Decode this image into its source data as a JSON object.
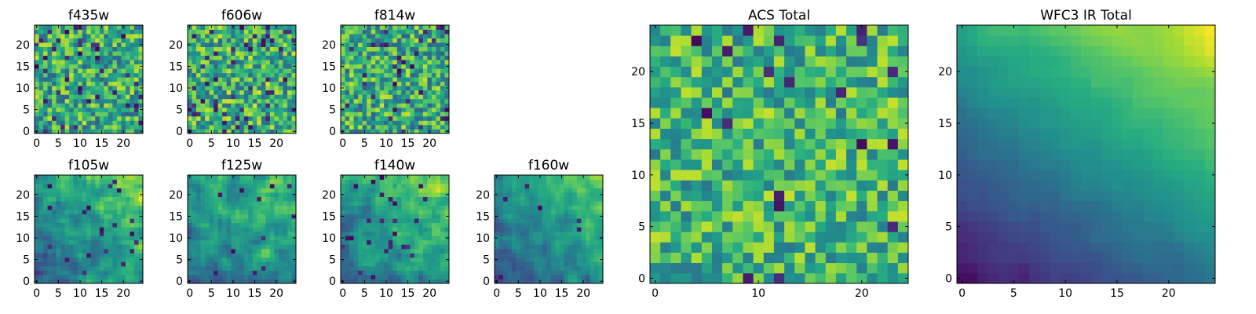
{
  "colormap": "viridis",
  "colormap_stops": [
    "#440154",
    "#3b528b",
    "#21918c",
    "#5ec962",
    "#fde725"
  ],
  "chart_data": [
    {
      "type": "heatmap",
      "title": "f435w",
      "grid_size": 25,
      "xticks": [
        0,
        5,
        10,
        15,
        20
      ],
      "yticks": [
        0,
        5,
        10,
        15,
        20
      ],
      "texture": "uniform random noise with occasional dark pixels",
      "seed": 11,
      "base_level": 0.62,
      "noise_amplitude": 0.3,
      "dark_pixel_fraction": 0.07,
      "gradient": null
    },
    {
      "type": "heatmap",
      "title": "f606w",
      "grid_size": 25,
      "xticks": [
        0,
        5,
        10,
        15,
        20
      ],
      "yticks": [
        0,
        5,
        10,
        15,
        20
      ],
      "texture": "uniform random noise with occasional dark pixels",
      "seed": 23,
      "base_level": 0.64,
      "noise_amplitude": 0.3,
      "dark_pixel_fraction": 0.07,
      "gradient": null
    },
    {
      "type": "heatmap",
      "title": "f814w",
      "grid_size": 25,
      "xticks": [
        0,
        5,
        10,
        15,
        20
      ],
      "yticks": [
        0,
        5,
        10,
        15,
        20
      ],
      "texture": "uniform random noise with occasional dark pixels",
      "seed": 37,
      "base_level": 0.62,
      "noise_amplitude": 0.3,
      "dark_pixel_fraction": 0.05,
      "gradient": null
    },
    {
      "type": "heatmap",
      "title": "f105w",
      "grid_size": 25,
      "xticks": [
        0,
        5,
        10,
        15,
        20
      ],
      "yticks": [
        0,
        5,
        10,
        15,
        20
      ],
      "texture": "smooth blotchy noise, brighter toward top-right",
      "seed": 41,
      "base_level": 0.55,
      "noise_amplitude": 0.34,
      "dark_pixel_fraction": 0.03,
      "gradient": "top-right"
    },
    {
      "type": "heatmap",
      "title": "f125w",
      "grid_size": 25,
      "xticks": [
        0,
        5,
        10,
        15,
        20
      ],
      "yticks": [
        0,
        5,
        10,
        15,
        20
      ],
      "texture": "smooth blotchy noise, brighter toward top-right",
      "seed": 53,
      "base_level": 0.55,
      "noise_amplitude": 0.32,
      "dark_pixel_fraction": 0.02,
      "gradient": "top-right"
    },
    {
      "type": "heatmap",
      "title": "f140w",
      "grid_size": 25,
      "xticks": [
        0,
        5,
        10,
        15,
        20
      ],
      "yticks": [
        0,
        5,
        10,
        15,
        20
      ],
      "texture": "smooth blotchy noise, brighter toward top-right",
      "seed": 67,
      "base_level": 0.58,
      "noise_amplitude": 0.32,
      "dark_pixel_fraction": 0.03,
      "gradient": "top-right"
    },
    {
      "type": "heatmap",
      "title": "f160w",
      "grid_size": 25,
      "xticks": [
        0,
        5,
        10,
        15,
        20
      ],
      "yticks": [
        0,
        5,
        10,
        15,
        20
      ],
      "texture": "smooth noise, bright top-right, darker bottom-left",
      "seed": 79,
      "base_level": 0.52,
      "noise_amplitude": 0.26,
      "dark_pixel_fraction": 0.02,
      "gradient": "top-right"
    },
    {
      "type": "heatmap",
      "title": "ACS Total",
      "grid_size": 25,
      "xticks": [
        0,
        10,
        20
      ],
      "yticks": [
        0,
        5,
        10,
        15,
        20
      ],
      "texture": "uniform random noise with occasional dark pixels",
      "seed": 97,
      "base_level": 0.66,
      "noise_amplitude": 0.26,
      "dark_pixel_fraction": 0.035,
      "gradient": null
    },
    {
      "type": "heatmap",
      "title": "WFC3 IR Total",
      "grid_size": 25,
      "xticks": [
        0,
        5,
        10,
        15,
        20
      ],
      "yticks": [
        0,
        5,
        10,
        15,
        20
      ],
      "texture": "smooth gradient: dark purple bottom-left to bright yellow top-right",
      "seed": 113,
      "base_level": 0.5,
      "noise_amplitude": 0.08,
      "dark_pixel_fraction": 0.0,
      "gradient": "strong-top-right"
    }
  ]
}
